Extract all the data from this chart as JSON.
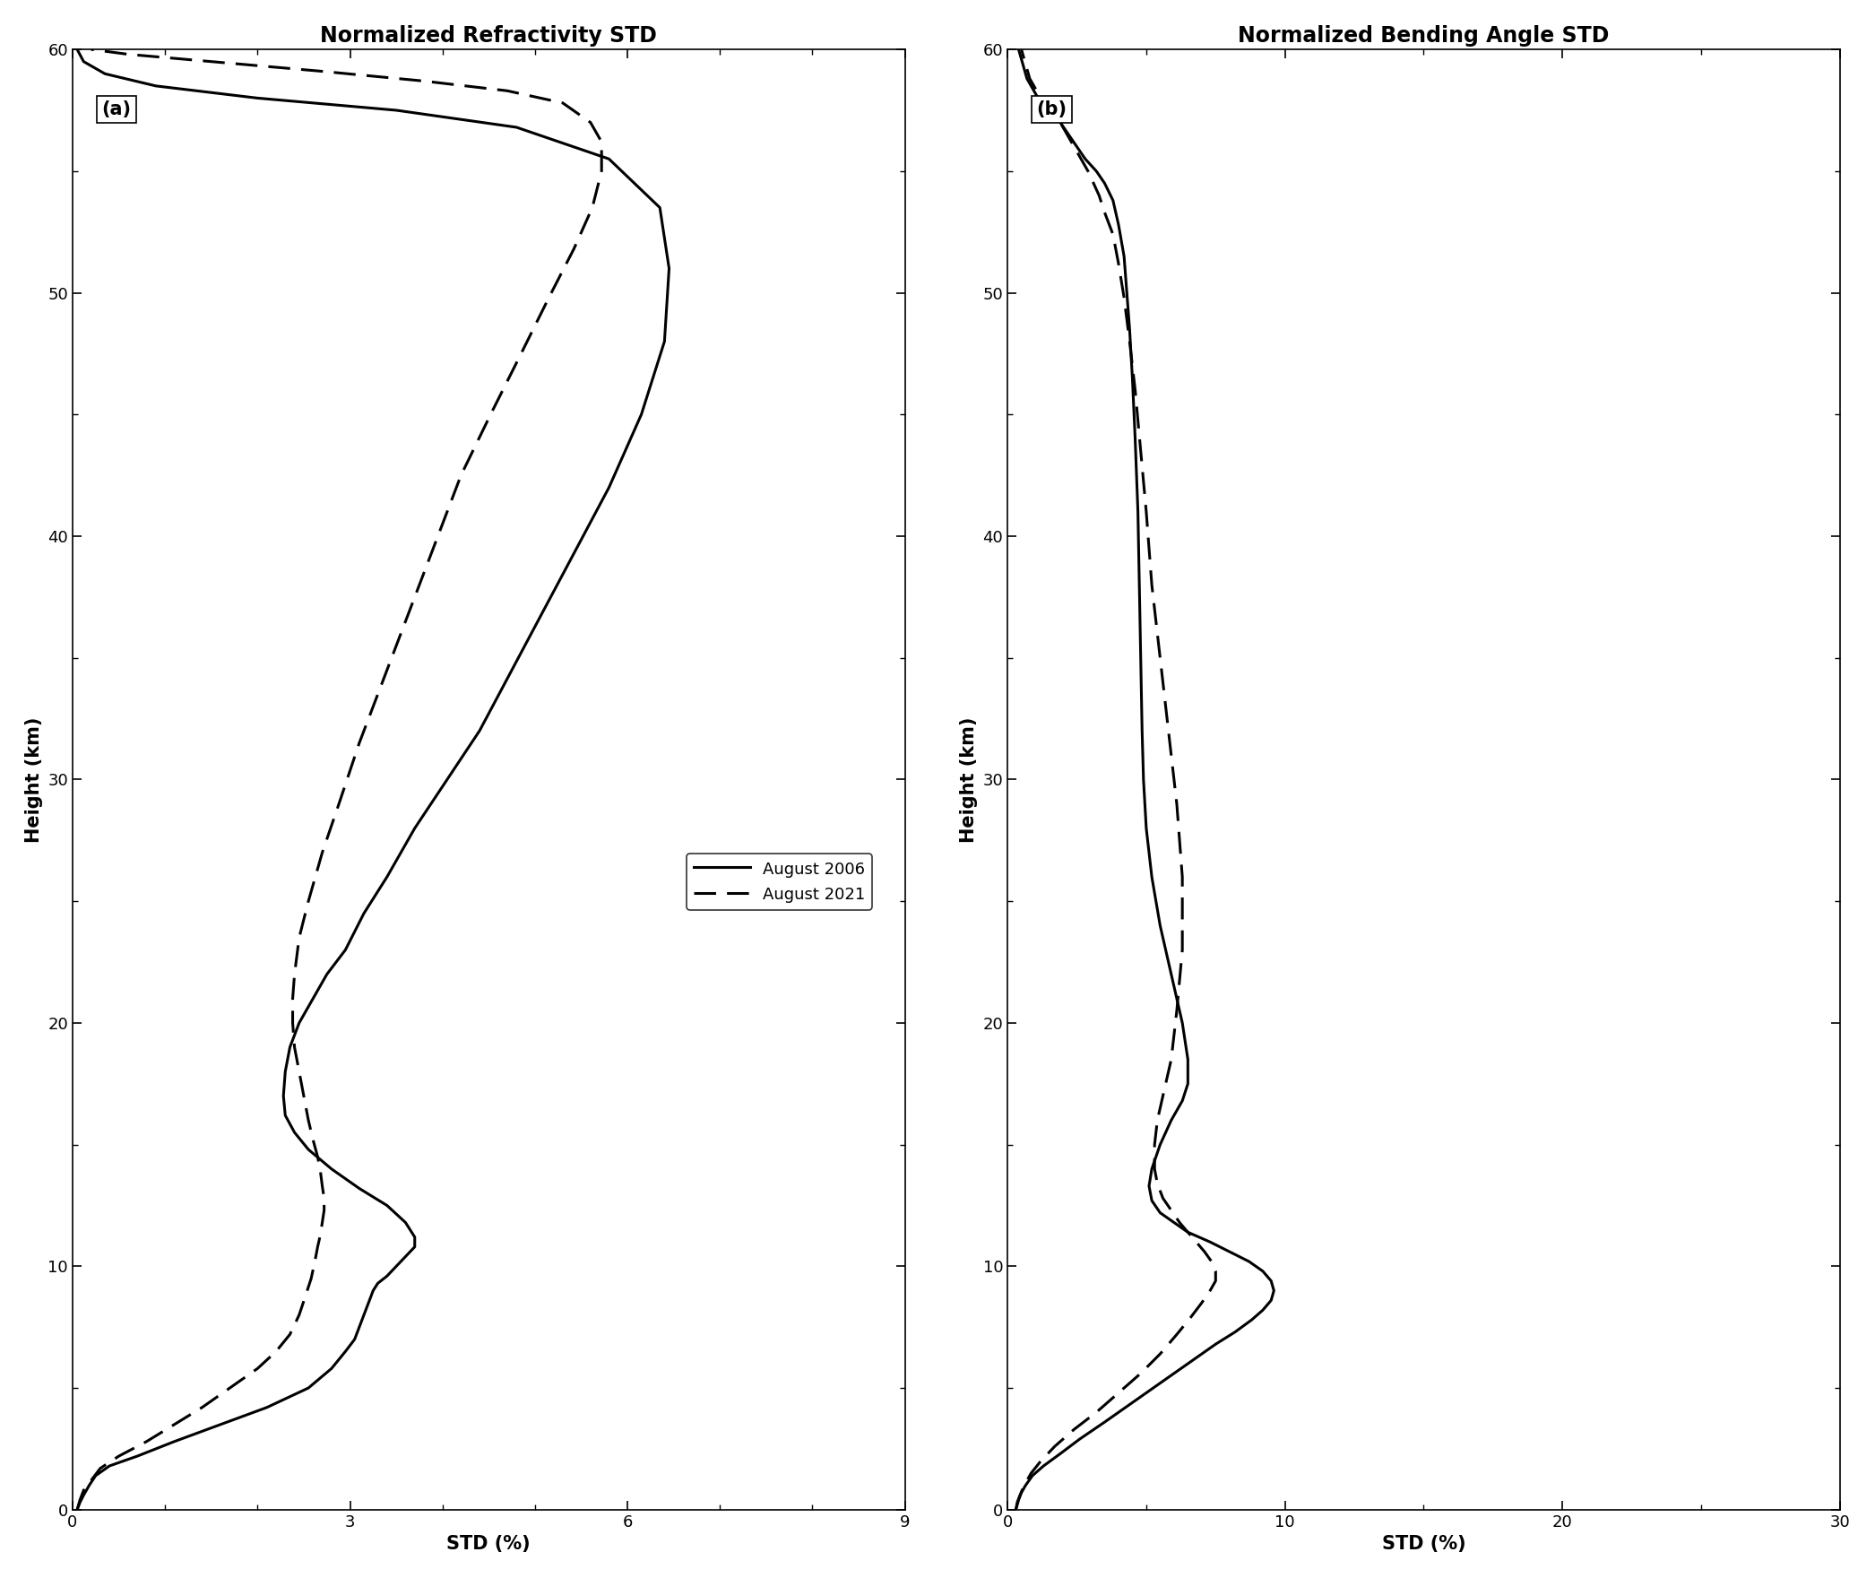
{
  "title_a": "Normalized Refractivity STD",
  "title_b": "Normalized Bending Angle STD",
  "xlabel": "STD (%)",
  "ylabel": "Height (km)",
  "label_2006": "August 2006",
  "label_2021": "August 2021",
  "panel_a_label": "(a)",
  "panel_b_label": "(b)",
  "xlim_a": [
    0,
    9
  ],
  "xlim_b": [
    0,
    30
  ],
  "ylim": [
    0,
    60
  ],
  "xticks_a": [
    0,
    3,
    6,
    9
  ],
  "xticks_b": [
    0,
    10,
    20,
    30
  ],
  "yticks": [
    0,
    10,
    20,
    30,
    40,
    50,
    60
  ],
  "ref_2006_std": [
    0.05,
    0.08,
    0.12,
    0.18,
    0.25,
    0.4,
    0.7,
    1.1,
    1.6,
    2.1,
    2.55,
    2.8,
    2.95,
    3.05,
    3.1,
    3.15,
    3.2,
    3.25,
    3.3,
    3.4,
    3.5,
    3.6,
    3.7,
    3.7,
    3.6,
    3.4,
    3.1,
    2.8,
    2.55,
    2.4,
    2.3,
    2.28,
    2.3,
    2.35,
    2.45,
    2.6,
    2.75,
    2.95,
    3.15,
    3.4,
    3.7,
    4.05,
    4.4,
    4.75,
    5.1,
    5.45,
    5.8,
    6.15,
    6.4,
    6.45,
    6.35,
    5.8,
    4.8,
    3.5,
    2.0,
    0.9,
    0.35,
    0.12,
    0.05
  ],
  "ref_2006_h": [
    0.0,
    0.3,
    0.6,
    1.0,
    1.4,
    1.8,
    2.2,
    2.8,
    3.5,
    4.2,
    5.0,
    5.8,
    6.5,
    7.0,
    7.5,
    8.0,
    8.5,
    9.0,
    9.3,
    9.6,
    10.0,
    10.4,
    10.8,
    11.2,
    11.8,
    12.5,
    13.2,
    14.0,
    14.8,
    15.5,
    16.2,
    17.0,
    18.0,
    19.0,
    20.0,
    21.0,
    22.0,
    23.0,
    24.5,
    26.0,
    28.0,
    30.0,
    32.0,
    34.5,
    37.0,
    39.5,
    42.0,
    45.0,
    48.0,
    51.0,
    53.5,
    55.5,
    56.8,
    57.5,
    58.0,
    58.5,
    59.0,
    59.5,
    60.0
  ],
  "ref_2021_std": [
    0.05,
    0.08,
    0.12,
    0.2,
    0.3,
    0.5,
    0.8,
    1.1,
    1.4,
    1.7,
    2.0,
    2.2,
    2.35,
    2.45,
    2.52,
    2.58,
    2.62,
    2.65,
    2.68,
    2.7,
    2.72,
    2.72,
    2.7,
    2.68,
    2.65,
    2.6,
    2.55,
    2.5,
    2.45,
    2.4,
    2.38,
    2.38,
    2.4,
    2.45,
    2.55,
    2.7,
    2.88,
    3.1,
    3.35,
    3.6,
    3.9,
    4.2,
    4.52,
    4.85,
    5.15,
    5.42,
    5.62,
    5.72,
    5.72,
    5.6,
    5.3,
    4.7,
    3.8,
    2.7,
    1.5,
    0.6,
    0.2
  ],
  "ref_2021_h": [
    0.0,
    0.4,
    0.8,
    1.2,
    1.7,
    2.2,
    2.8,
    3.5,
    4.2,
    5.0,
    5.8,
    6.5,
    7.2,
    8.0,
    8.8,
    9.5,
    10.2,
    10.8,
    11.3,
    11.8,
    12.3,
    12.8,
    13.3,
    13.9,
    14.5,
    15.2,
    16.0,
    17.0,
    18.0,
    19.0,
    20.0,
    21.0,
    22.0,
    23.5,
    25.0,
    27.0,
    29.0,
    31.5,
    34.0,
    36.5,
    39.5,
    42.5,
    45.0,
    47.5,
    49.8,
    51.8,
    53.5,
    55.0,
    56.2,
    57.0,
    57.8,
    58.3,
    58.7,
    59.1,
    59.5,
    59.8,
    60.0
  ],
  "bend_2006_std": [
    0.3,
    0.35,
    0.4,
    0.5,
    0.65,
    0.9,
    1.3,
    1.9,
    2.6,
    3.5,
    4.5,
    5.5,
    6.5,
    7.5,
    8.2,
    8.8,
    9.2,
    9.5,
    9.6,
    9.5,
    9.2,
    8.7,
    8.0,
    7.3,
    6.5,
    6.0,
    5.5,
    5.2,
    5.1,
    5.2,
    5.5,
    5.9,
    6.3,
    6.5,
    6.5,
    6.3,
    5.9,
    5.5,
    5.2,
    5.0,
    4.9,
    4.85,
    4.8,
    4.75,
    4.7,
    4.6,
    4.5,
    4.4,
    4.3,
    4.2,
    4.0,
    3.8,
    3.5,
    3.2,
    2.8,
    2.5,
    2.2,
    1.9,
    1.5,
    1.1,
    0.7,
    0.4
  ],
  "bend_2006_h": [
    0.0,
    0.2,
    0.4,
    0.7,
    1.0,
    1.4,
    1.8,
    2.3,
    2.9,
    3.6,
    4.4,
    5.2,
    6.0,
    6.8,
    7.3,
    7.8,
    8.2,
    8.6,
    9.0,
    9.4,
    9.8,
    10.2,
    10.6,
    11.0,
    11.4,
    11.8,
    12.2,
    12.7,
    13.3,
    14.0,
    15.0,
    16.0,
    16.8,
    17.5,
    18.5,
    20.0,
    22.0,
    24.0,
    26.0,
    28.0,
    30.0,
    32.0,
    35.0,
    38.0,
    41.0,
    44.0,
    46.5,
    48.5,
    50.0,
    51.5,
    52.8,
    53.8,
    54.5,
    55.0,
    55.5,
    56.0,
    56.5,
    57.0,
    57.5,
    58.0,
    58.8,
    60.0
  ],
  "bend_2021_std": [
    0.3,
    0.35,
    0.45,
    0.6,
    0.85,
    1.2,
    1.7,
    2.4,
    3.2,
    4.0,
    4.8,
    5.5,
    6.1,
    6.6,
    7.0,
    7.3,
    7.5,
    7.5,
    7.35,
    7.1,
    6.8,
    6.5,
    6.2,
    5.9,
    5.6,
    5.4,
    5.3,
    5.3,
    5.4,
    5.6,
    5.9,
    6.1,
    6.3,
    6.3,
    6.1,
    5.8,
    5.5,
    5.2,
    5.0,
    4.8,
    4.6,
    4.4,
    4.2,
    4.0,
    3.8,
    3.5,
    3.3,
    3.1,
    2.9,
    2.7,
    2.5,
    2.3,
    2.1,
    1.9,
    1.6,
    1.2,
    0.8,
    0.5
  ],
  "bend_2021_h": [
    0.0,
    0.3,
    0.6,
    1.0,
    1.5,
    2.0,
    2.6,
    3.3,
    4.0,
    4.8,
    5.6,
    6.4,
    7.2,
    7.9,
    8.5,
    9.0,
    9.4,
    9.8,
    10.2,
    10.6,
    11.0,
    11.4,
    11.8,
    12.3,
    12.8,
    13.4,
    14.0,
    15.0,
    16.0,
    17.0,
    18.5,
    20.5,
    23.0,
    26.0,
    29.0,
    32.0,
    35.0,
    38.0,
    41.0,
    43.5,
    46.0,
    48.0,
    49.8,
    51.2,
    52.4,
    53.3,
    54.0,
    54.5,
    55.0,
    55.4,
    55.8,
    56.2,
    56.6,
    57.0,
    57.5,
    58.0,
    58.8,
    60.0
  ],
  "line_color": "#000000",
  "line_width": 2.2,
  "font_size_title": 17,
  "font_size_label": 15,
  "font_size_tick": 13,
  "font_size_legend": 13,
  "font_size_panel": 15
}
